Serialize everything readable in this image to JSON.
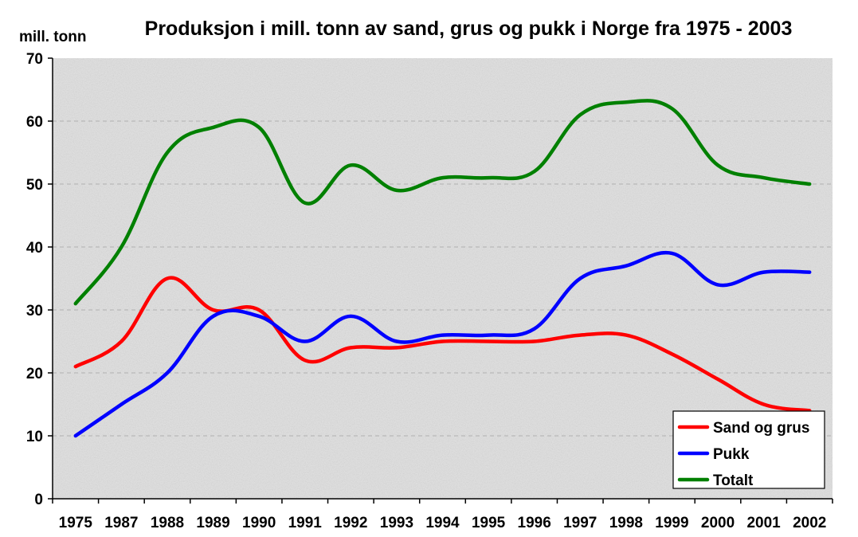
{
  "chart_data": {
    "type": "line",
    "title": "Produksjon i mill. tonn av sand, grus og pukk i Norge fra 1975 - 2003",
    "ylabel": "mill. tonn",
    "xlabel": "",
    "categories": [
      "1975",
      "1987",
      "1988",
      "1989",
      "1990",
      "1991",
      "1992",
      "1993",
      "1994",
      "1995",
      "1996",
      "1997",
      "1998",
      "1999",
      "2000",
      "2001",
      "2002"
    ],
    "ylim": [
      0,
      70
    ],
    "yticks": [
      0,
      10,
      20,
      30,
      40,
      50,
      60,
      70
    ],
    "grid": "horizontal dashed",
    "legend_position": "bottom-right",
    "series": [
      {
        "name": "Sand og grus",
        "color": "#ff0000",
        "values": [
          21,
          25,
          35,
          30,
          30,
          22,
          24,
          24,
          25,
          25,
          25,
          26,
          26,
          23,
          19,
          15,
          14
        ]
      },
      {
        "name": "Pukk",
        "color": "#0000ff",
        "values": [
          10,
          15,
          20,
          29,
          29,
          25,
          29,
          25,
          26,
          26,
          27,
          35,
          37,
          39,
          34,
          36,
          36
        ]
      },
      {
        "name": "Totalt",
        "color": "#008000",
        "values": [
          31,
          40,
          55,
          59,
          59,
          47,
          53,
          49,
          51,
          51,
          52,
          61,
          63,
          62,
          53,
          51,
          50
        ]
      }
    ]
  }
}
